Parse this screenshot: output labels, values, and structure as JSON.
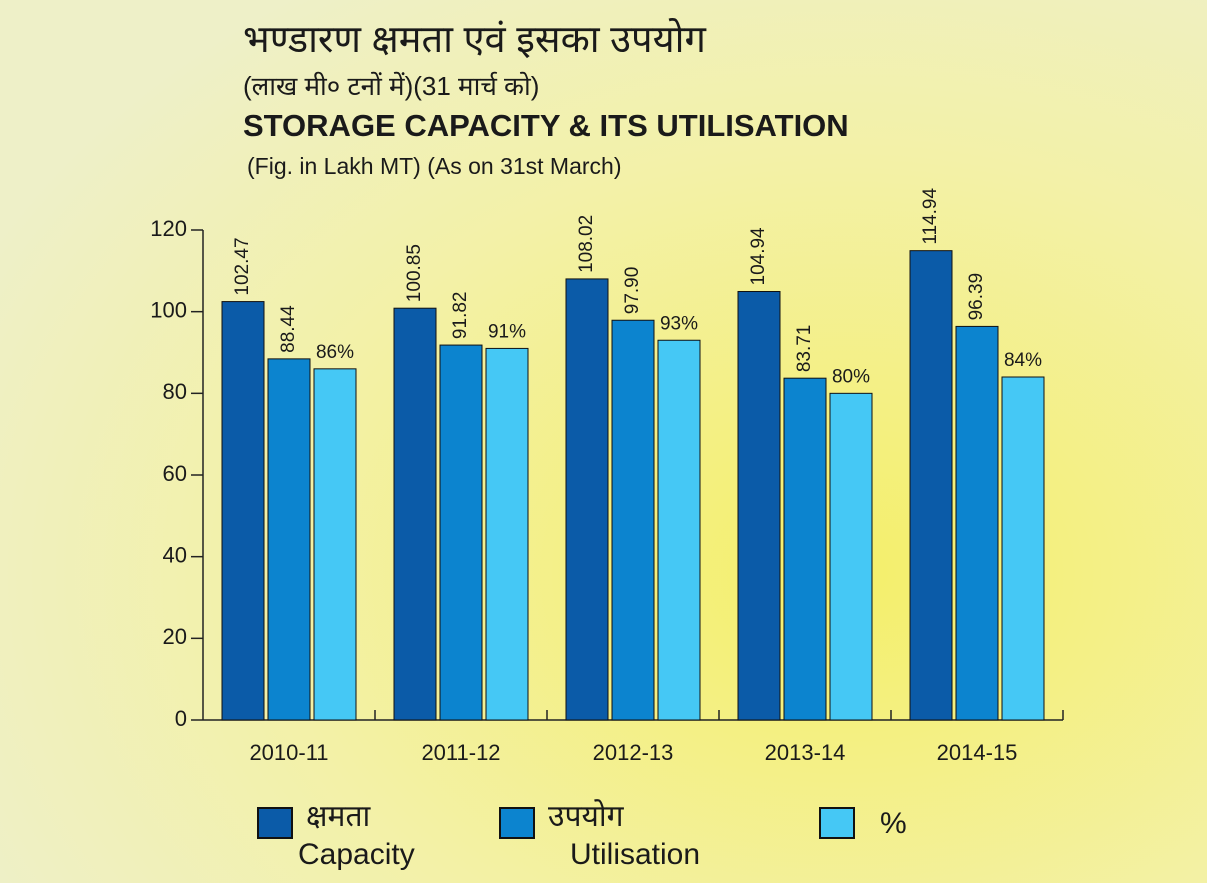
{
  "chart_data": {
    "type": "bar",
    "title_hi": "भण्डारण क्षमता एवं इसका उपयोग",
    "subtitle_hi": "(लाख मी० टनों में)(31 मार्च को)",
    "title": "STORAGE CAPACITY & ITS UTILISATION",
    "subtitle": "(Fig. in Lakh MT) (As on 31st March)",
    "categories": [
      "2010-11",
      "2011-12",
      "2012-13",
      "2013-14",
      "2014-15"
    ],
    "series": [
      {
        "name": "Capacity",
        "name_hi": "क्षमता",
        "color": "#0b5ba8",
        "values": [
          102.47,
          100.85,
          108.02,
          104.94,
          114.94
        ],
        "value_labels": [
          "102.47",
          "100.85",
          "108.02",
          "104.94",
          "114.94"
        ]
      },
      {
        "name": "Utilisation",
        "name_hi": "उपयोग",
        "color": "#0c84cf",
        "values": [
          88.44,
          91.82,
          97.9,
          83.71,
          96.39
        ],
        "value_labels": [
          "88.44",
          "91.82",
          "97.90",
          "83.71",
          "96.39"
        ]
      },
      {
        "name": "%",
        "color": "#45c8f5",
        "values": [
          86,
          91,
          93,
          80,
          84
        ],
        "value_labels": [
          "86%",
          "91%",
          "93%",
          "80%",
          "84%"
        ]
      }
    ],
    "ylim": [
      0,
      120
    ],
    "yticks": [
      0,
      20,
      40,
      60,
      80,
      100,
      120
    ],
    "grid": false
  }
}
